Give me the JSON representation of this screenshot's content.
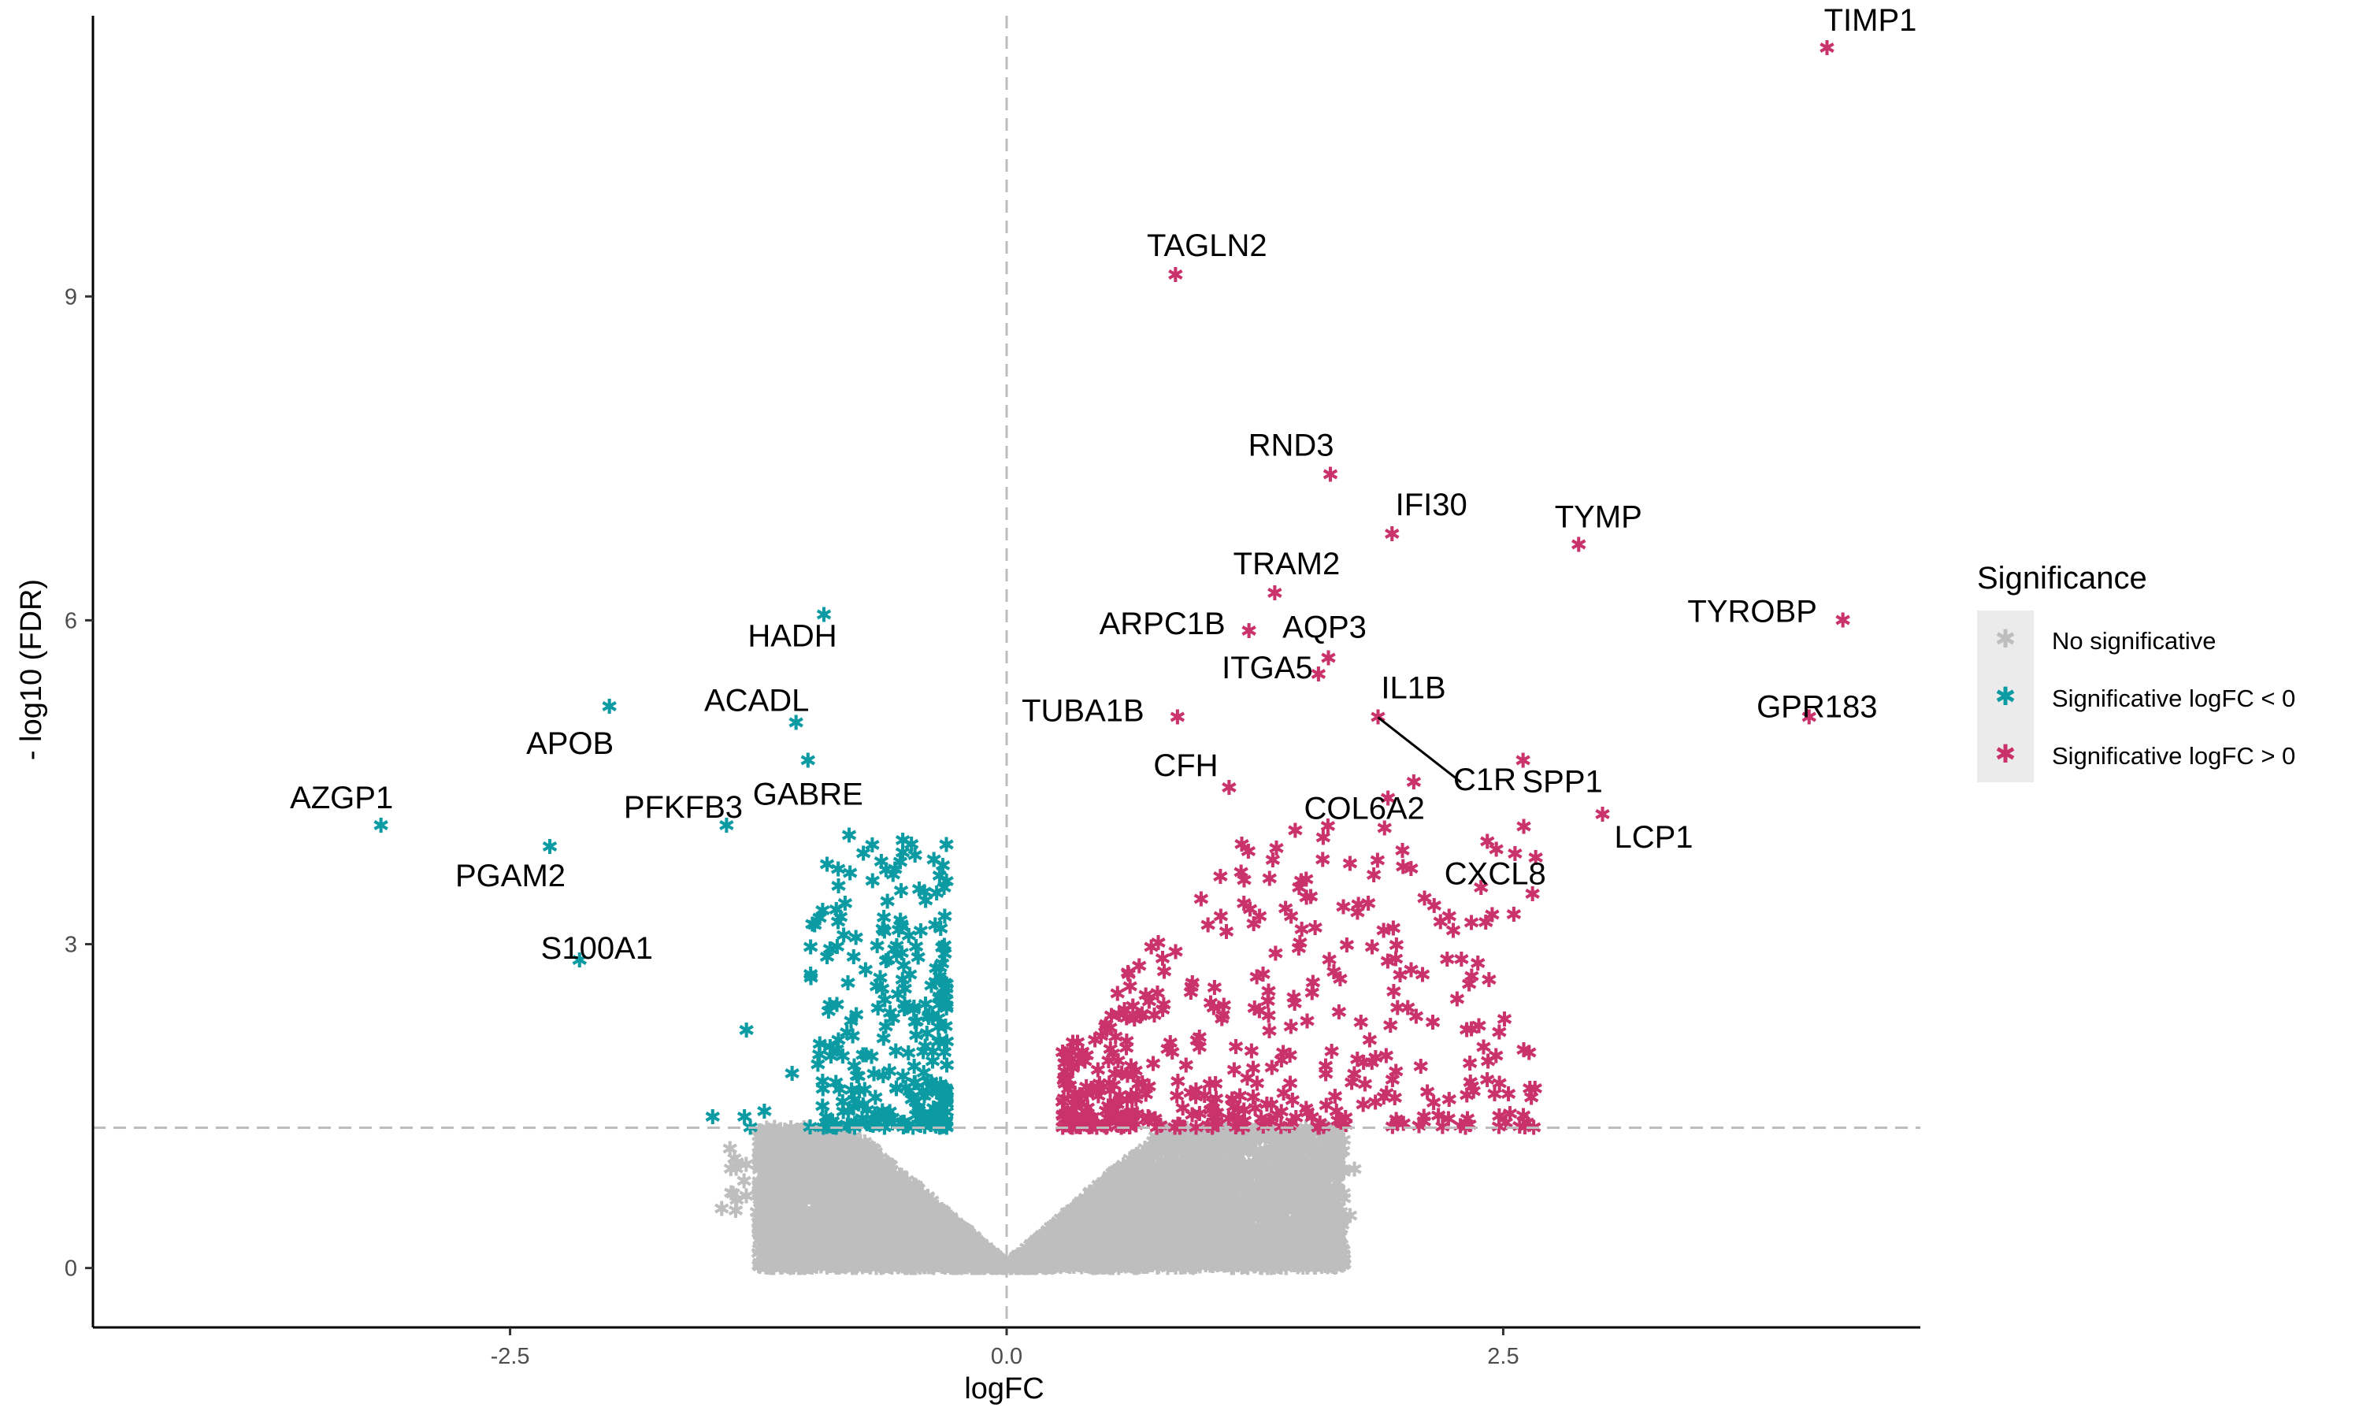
{
  "chart_data": {
    "type": "scatter",
    "title": "",
    "xlabel": "logFC",
    "ylabel": "- log10 (FDR)",
    "xlim": [
      -4.6,
      4.6
    ],
    "ylim": [
      -0.55,
      11.6
    ],
    "x_ticks": [
      -2.5,
      0.0,
      2.5
    ],
    "x_tick_labels": [
      "-2.5",
      "0.0",
      "2.5"
    ],
    "y_ticks": [
      0,
      3,
      6,
      9
    ],
    "y_tick_labels": [
      "0",
      "3",
      "6",
      "9"
    ],
    "grid": false,
    "thresholds": {
      "logFC": 0,
      "neg_log10_fdr": 1.3
    },
    "legend": {
      "title": "Significance",
      "placement": "right",
      "entries": [
        {
          "label": "No significative",
          "color": "#bebebe"
        },
        {
          "label": "Significative logFC < 0",
          "color": "#0c9aa3"
        },
        {
          "label": "Significative logFC > 0",
          "color": "#c9326b"
        }
      ]
    },
    "labeled_points": [
      {
        "gene": "TIMP1",
        "x": 4.13,
        "y": 11.3,
        "group": "up"
      },
      {
        "gene": "TAGLN2",
        "x": 0.85,
        "y": 9.2,
        "group": "up"
      },
      {
        "gene": "RND3",
        "x": 1.63,
        "y": 7.35,
        "group": "up"
      },
      {
        "gene": "IFI30",
        "x": 1.94,
        "y": 6.8,
        "group": "up"
      },
      {
        "gene": "TYMP",
        "x": 2.88,
        "y": 6.7,
        "group": "up"
      },
      {
        "gene": "TRAM2",
        "x": 1.35,
        "y": 6.25,
        "group": "up"
      },
      {
        "gene": "TYROBP",
        "x": 4.21,
        "y": 6.0,
        "group": "up"
      },
      {
        "gene": "AQP3",
        "x": 1.62,
        "y": 5.65,
        "group": "up"
      },
      {
        "gene": "ARPC1B",
        "x": 1.22,
        "y": 5.9,
        "group": "up"
      },
      {
        "gene": "IL1B",
        "x": 1.87,
        "y": 5.1,
        "group": "up"
      },
      {
        "gene": "ITGA5",
        "x": 1.57,
        "y": 5.5,
        "group": "up"
      },
      {
        "gene": "TUBA1B",
        "x": 0.86,
        "y": 5.1,
        "group": "up"
      },
      {
        "gene": "GPR183",
        "x": 4.04,
        "y": 5.1,
        "group": "up"
      },
      {
        "gene": "C1R",
        "x": 2.05,
        "y": 4.5,
        "group": "up"
      },
      {
        "gene": "COL6A2",
        "x": 1.92,
        "y": 4.35,
        "group": "up"
      },
      {
        "gene": "CFH",
        "x": 1.12,
        "y": 4.45,
        "group": "up"
      },
      {
        "gene": "SPP1",
        "x": 2.6,
        "y": 4.7,
        "group": "up"
      },
      {
        "gene": "LCP1",
        "x": 3.0,
        "y": 4.2,
        "group": "up"
      },
      {
        "gene": "CXCL8",
        "x": 2.42,
        "y": 3.95,
        "group": "up"
      },
      {
        "gene": "HADH",
        "x": -0.92,
        "y": 6.05,
        "group": "down"
      },
      {
        "gene": "ACADL",
        "x": -1.06,
        "y": 5.05,
        "group": "down"
      },
      {
        "gene": "APOB",
        "x": -2.0,
        "y": 5.2,
        "group": "down"
      },
      {
        "gene": "GABRE",
        "x": -1.0,
        "y": 4.7,
        "group": "down"
      },
      {
        "gene": "PFKFB3",
        "x": -1.41,
        "y": 4.1,
        "group": "down"
      },
      {
        "gene": "AZGP1",
        "x": -3.15,
        "y": 4.1,
        "group": "down"
      },
      {
        "gene": "PGAM2",
        "x": -2.3,
        "y": 3.9,
        "group": "down"
      },
      {
        "gene": "S100A1",
        "x": -2.15,
        "y": 2.85,
        "group": "down"
      }
    ],
    "background_points": {
      "note": "",
      "down_count": 280,
      "up_count": 430,
      "ns_count": 5200
    }
  }
}
